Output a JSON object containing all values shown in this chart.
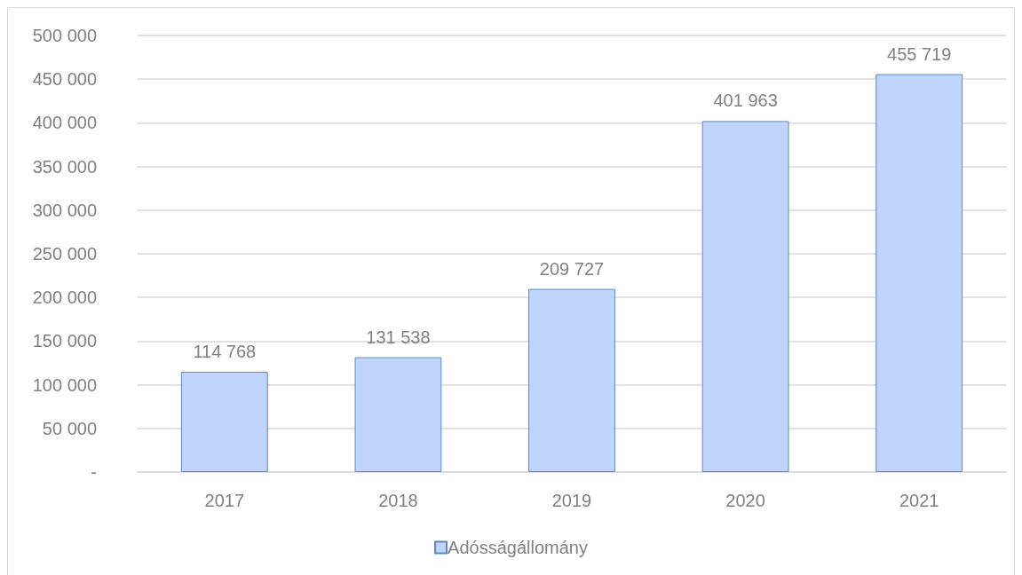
{
  "chart_data": {
    "type": "bar",
    "categories": [
      "2017",
      "2018",
      "2019",
      "2020",
      "2021"
    ],
    "series": [
      {
        "name": "Adósságállomány",
        "color": "#c0d5fc",
        "values": [
          114768,
          131538,
          209727,
          401963,
          455719
        ],
        "value_labels": [
          "114 768",
          "131 538",
          "209 727",
          "401 963",
          "455 719"
        ]
      }
    ],
    "ylim": [
      0,
      500000
    ],
    "yticks": [
      {
        "value": 0,
        "label": "-"
      },
      {
        "value": 50000,
        "label": "50 000"
      },
      {
        "value": 100000,
        "label": "100 000"
      },
      {
        "value": 150000,
        "label": "150 000"
      },
      {
        "value": 200000,
        "label": "200 000"
      },
      {
        "value": 250000,
        "label": "250 000"
      },
      {
        "value": 300000,
        "label": "300 000"
      },
      {
        "value": 350000,
        "label": "350 000"
      },
      {
        "value": 400000,
        "label": "400 000"
      },
      {
        "value": 450000,
        "label": "450 000"
      },
      {
        "value": 500000,
        "label": "500 000"
      }
    ],
    "grid": "y",
    "legend": "bottom"
  }
}
